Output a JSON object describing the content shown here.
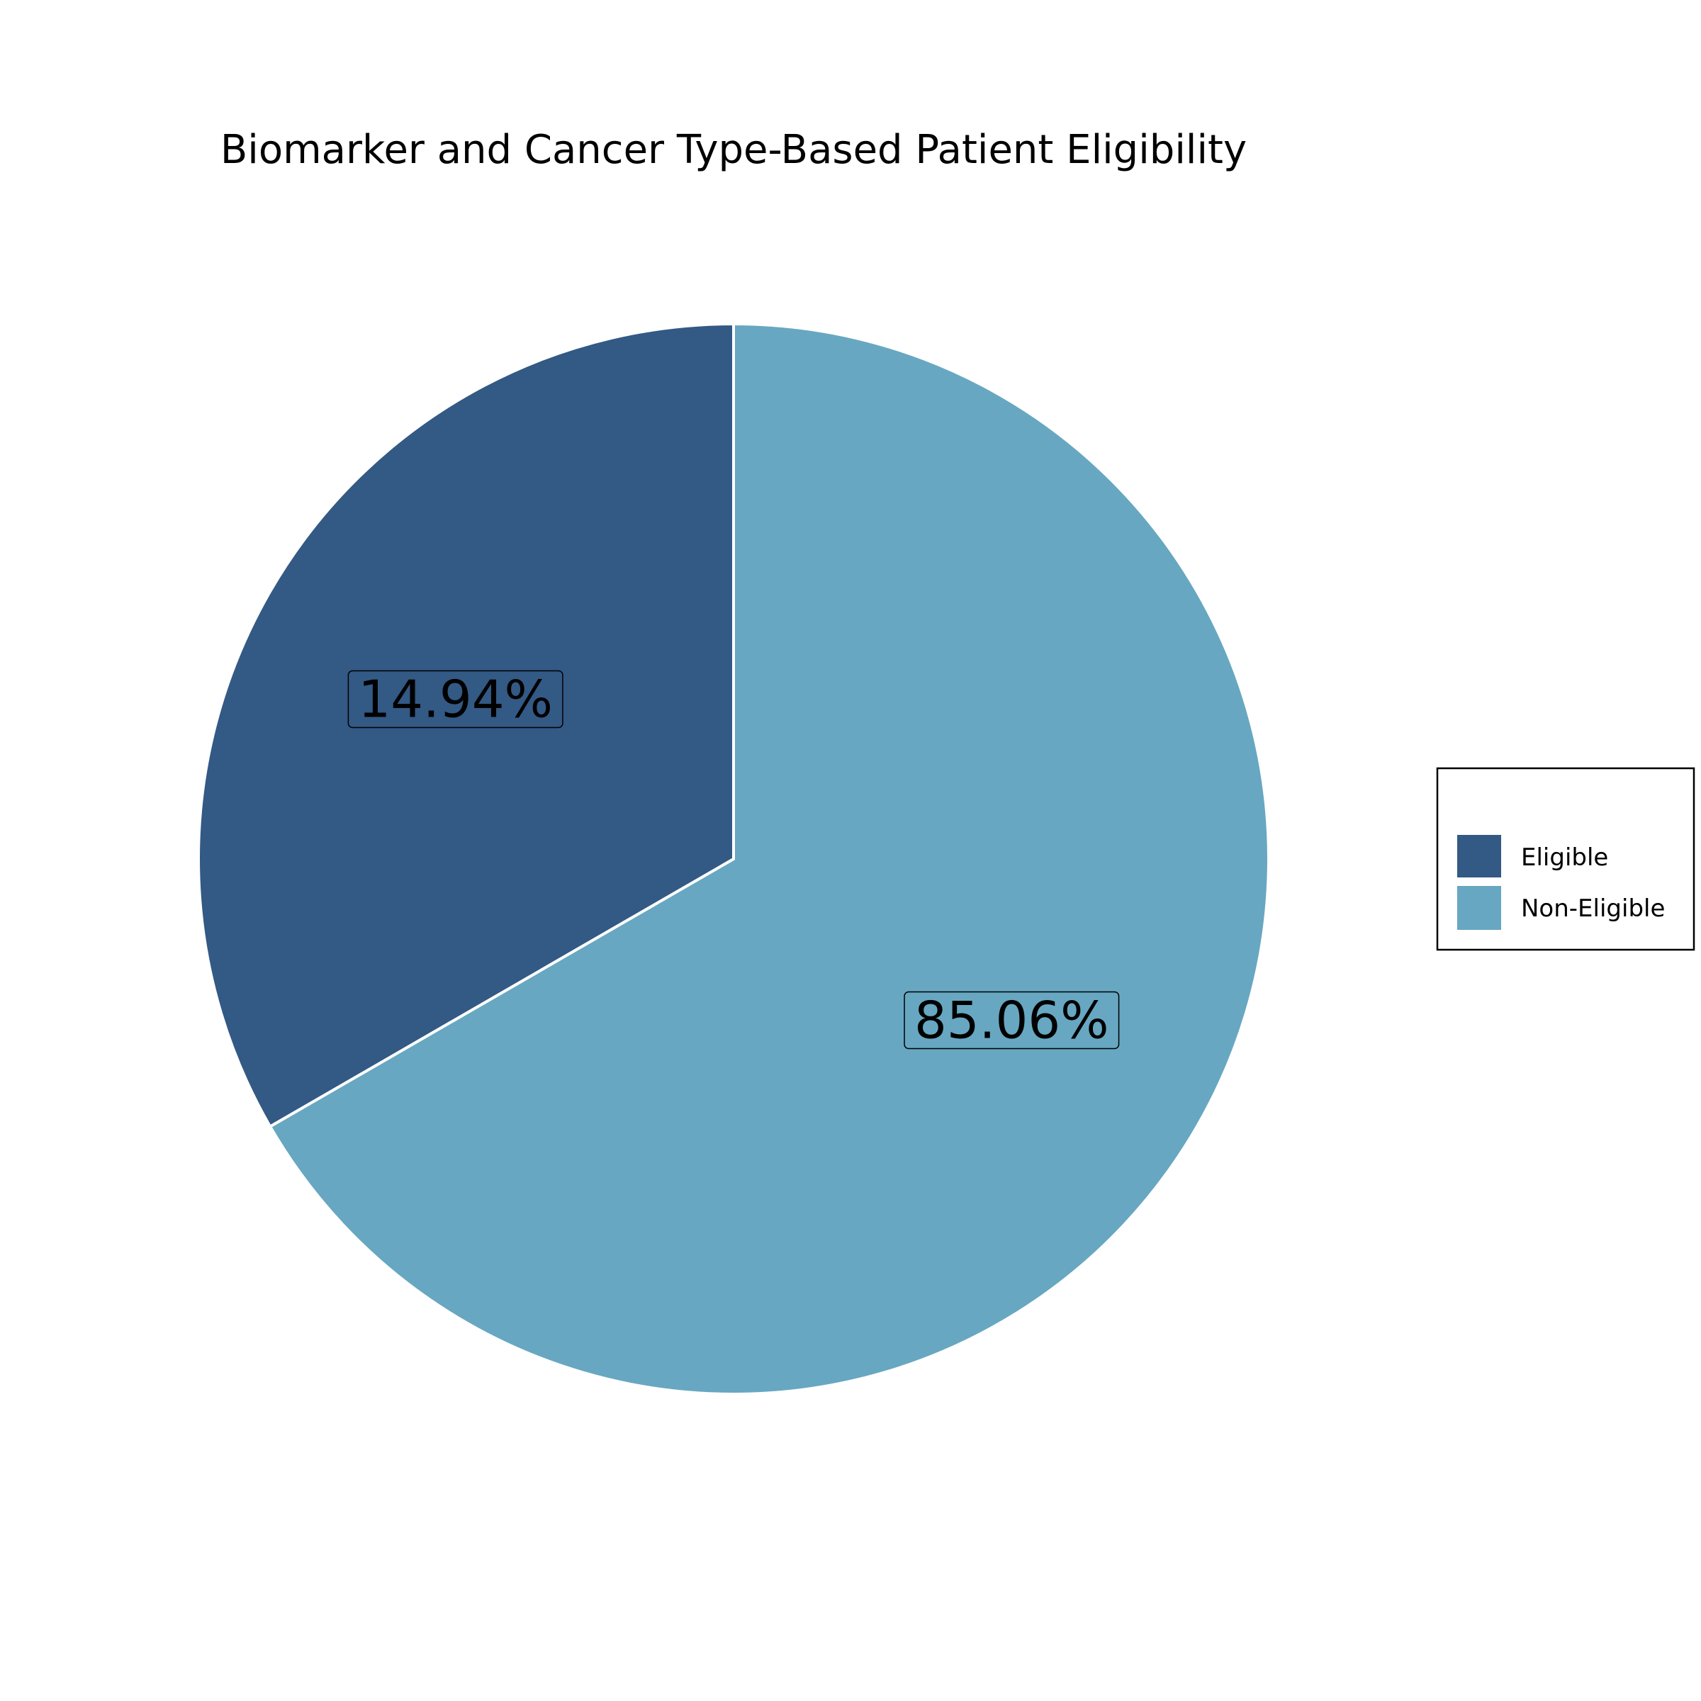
{
  "chart_data": {
    "type": "pie",
    "title": "Biomarker and Cancer Type-Based Patient Eligibility",
    "categories": [
      "Eligible",
      "Non-Eligible"
    ],
    "values": [
      14.94,
      85.06
    ],
    "labels": [
      "14.94%",
      "85.06%"
    ],
    "colors": [
      "#335985",
      "#67a7c1"
    ],
    "legend": {
      "placement": "right",
      "entries": [
        "Eligible",
        "Non-Eligible"
      ]
    }
  }
}
